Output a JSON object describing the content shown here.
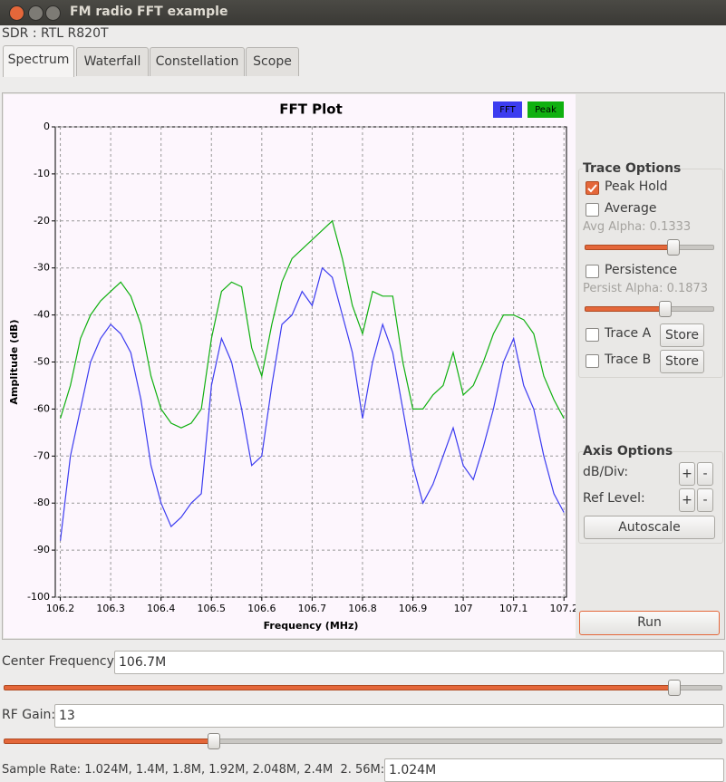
{
  "window": {
    "title": "FM radio FFT example"
  },
  "sdr_label": "SDR : RTL R820T",
  "tabs": [
    "Spectrum",
    "Waterfall",
    "Constellation",
    "Scope"
  ],
  "chart_data": {
    "type": "line",
    "title": "FFT Plot",
    "x_label": "Frequency (MHz)",
    "y_label": "Amplitude (dB)",
    "x": [
      106.2,
      106.22,
      106.24,
      106.26,
      106.28,
      106.3,
      106.32,
      106.34,
      106.36,
      106.38,
      106.4,
      106.42,
      106.44,
      106.46,
      106.48,
      106.5,
      106.52,
      106.54,
      106.56,
      106.58,
      106.6,
      106.62,
      106.64,
      106.66,
      106.68,
      106.7,
      106.72,
      106.74,
      106.76,
      106.78,
      106.8,
      106.82,
      106.84,
      106.86,
      106.88,
      106.9,
      106.92,
      106.94,
      106.96,
      106.98,
      107,
      107.02,
      107.04,
      107.06,
      107.08,
      107.1,
      107.12,
      107.14,
      107.16,
      107.18,
      107.2
    ],
    "series": [
      {
        "name": "FFT",
        "color": "#3c3cf0",
        "values": [
          -88,
          -70,
          -60,
          -50,
          -45,
          -42,
          -44,
          -48,
          -58,
          -72,
          -80,
          -85,
          -83,
          -80,
          -78,
          -55,
          -45,
          -50,
          -60,
          -72,
          -70,
          -55,
          -42,
          -40,
          -35,
          -38,
          -30,
          -32,
          -40,
          -48,
          -62,
          -50,
          -42,
          -48,
          -60,
          -72,
          -80,
          -76,
          -70,
          -64,
          -72,
          -75,
          -68,
          -60,
          -50,
          -45,
          -55,
          -60,
          -70,
          -78,
          -82
        ]
      },
      {
        "name": "Peak",
        "color": "#10b010",
        "values": [
          -62,
          -55,
          -45,
          -40,
          -37,
          -35,
          -33,
          -36,
          -42,
          -53,
          -60,
          -63,
          -64,
          -63,
          -60,
          -45,
          -35,
          -33,
          -34,
          -47,
          -53,
          -42,
          -33,
          -28,
          -26,
          -24,
          -22,
          -20,
          -28,
          -38,
          -44,
          -35,
          -36,
          -36,
          -50,
          -60,
          -60,
          -57,
          -55,
          -48,
          -57,
          -55,
          -50,
          -44,
          -40,
          -40,
          -41,
          -44,
          -53,
          -58,
          -62
        ]
      }
    ],
    "xlim": [
      106.19,
      107.205
    ],
    "xticks": [
      106.2,
      106.3,
      106.4,
      106.5,
      106.6,
      106.7,
      106.8,
      106.9,
      107,
      107.1,
      107.2
    ],
    "ylim": [
      -100,
      0
    ],
    "yticks": [
      -100,
      -90,
      -80,
      -70,
      -60,
      -50,
      -40,
      -30,
      -20,
      -10,
      0
    ],
    "grid": true,
    "legend": "upper right"
  },
  "trace_options": {
    "title": "Trace Options",
    "peak_hold": {
      "label": "Peak Hold",
      "checked": true
    },
    "average": {
      "label": "Average",
      "checked": false
    },
    "avg_alpha": "Avg Alpha: 0.1333",
    "persistence": {
      "label": "Persistence",
      "checked": false
    },
    "persist_alpha": "Persist Alpha: 0.1873",
    "trace_a": {
      "label": "Trace A",
      "checked": false,
      "button": "Store"
    },
    "trace_b": {
      "label": "Trace B",
      "checked": false,
      "button": "Store"
    }
  },
  "axis_options": {
    "title": "Axis Options",
    "db_div": "dB/Div:",
    "ref_level": "Ref Level:",
    "plus": "+",
    "minus": "-",
    "autoscale": "Autoscale"
  },
  "run": "Run",
  "controls": {
    "center_frequency": {
      "label": "Center Frequency:",
      "value": "106.7M"
    },
    "rf_gain": {
      "label": "RF Gain:",
      "value": "13"
    },
    "sample_rate": {
      "label": "Sample Rate: 1.024M, 1.4M, 1.8M, 1.92M, 2.048M, 2.4M  2. 56M:",
      "value": "1.024M"
    }
  }
}
